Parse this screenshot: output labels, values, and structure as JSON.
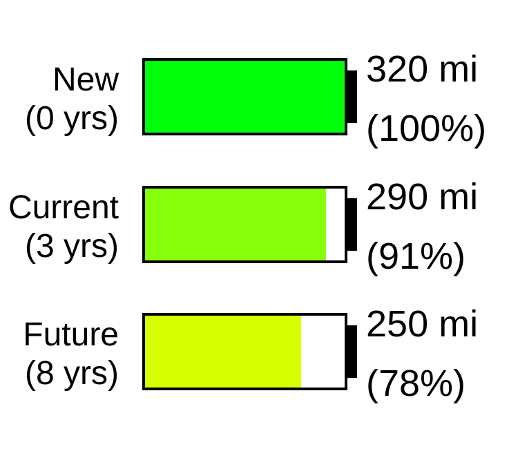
{
  "chart_data": {
    "type": "bar",
    "title": "",
    "xlabel": "",
    "ylabel": "",
    "categories": [
      "New (0 yrs)",
      "Current (3 yrs)",
      "Future (8 yrs)"
    ],
    "values": [
      320,
      290,
      250
    ],
    "unit": "mi",
    "percent_values": [
      100,
      91,
      78
    ],
    "ylim": [
      0,
      320
    ],
    "grid": false,
    "legend": "none",
    "items": [
      {
        "label_line1": "New",
        "label_line2": "(0 yrs)",
        "range": 320,
        "range_text": "320 mi",
        "percent": 100,
        "percent_text": "(100%)",
        "color": "#00ff0a"
      },
      {
        "label_line1": "Current",
        "label_line2": "(3 yrs)",
        "range": 290,
        "range_text": "290 mi",
        "percent": 91,
        "percent_text": "(91%)",
        "color": "#88ff0a"
      },
      {
        "label_line1": "Future",
        "label_line2": "(8 yrs)",
        "range": 250,
        "range_text": "250 mi",
        "percent": 78,
        "percent_text": "(78%)",
        "color": "#d6ff00"
      }
    ],
    "colors": {
      "outline": "#000000",
      "empty": "#ffffff",
      "text": "#000000"
    }
  }
}
